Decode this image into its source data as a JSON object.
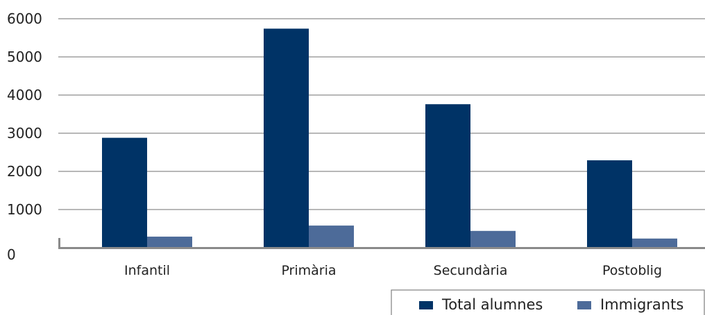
{
  "chart_data": {
    "type": "bar",
    "title": "",
    "xlabel": "",
    "ylabel": "",
    "categories": [
      "Infantil",
      "Primària",
      "Secundària",
      "Postoblig"
    ],
    "series": [
      {
        "name": "Total alumnes",
        "values": [
          2880,
          5740,
          3760,
          2290
        ],
        "color": "#003366"
      },
      {
        "name": "Immigrants",
        "values": [
          290,
          580,
          440,
          240
        ],
        "color": "#4d6b99"
      }
    ],
    "ylim": [
      0,
      6000
    ],
    "yticks": [
      0,
      1000,
      2000,
      3000,
      4000,
      5000,
      6000
    ],
    "grid": true,
    "legend": "bottom-right"
  }
}
